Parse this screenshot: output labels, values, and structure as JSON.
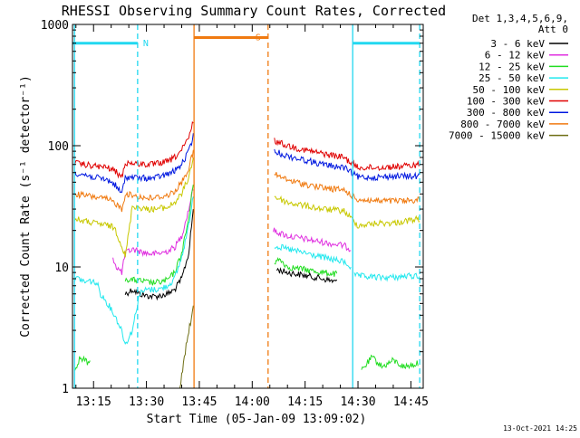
{
  "chart_data": {
    "type": "line",
    "title": "RHESSI Observing Summary Count Rates, Corrected",
    "ylabel": "Corrected Count Rate (s⁻¹ detector⁻¹)",
    "xlabel": "Start Time (05-Jan-09 13:09:02)",
    "x_tick_labels": [
      "13:15",
      "13:30",
      "13:45",
      "14:00",
      "14:15",
      "14:30",
      "14:45"
    ],
    "x_tick_minutes": [
      {
        "label": "13:15",
        "minutes": 795
      },
      {
        "label": "13:30",
        "minutes": 810
      },
      {
        "label": "13:45",
        "minutes": 825
      },
      {
        "label": "14:00",
        "minutes": 840
      },
      {
        "label": "14:15",
        "minutes": 855
      },
      {
        "label": "14:30",
        "minutes": 870
      },
      {
        "label": "14:45",
        "minutes": 885
      }
    ],
    "xlim_minutes": [
      789.03,
      888.5
    ],
    "y_scale": "log",
    "ylim": [
      1,
      1000
    ],
    "y_tick_labels": [
      {
        "value": 1,
        "label": "1"
      },
      {
        "value": 10,
        "label": "10"
      },
      {
        "value": 100,
        "label": "100"
      },
      {
        "value": 1000,
        "label": "1000"
      }
    ],
    "legend_header": [
      "Det 1,3,4,5,6,9,",
      "Att 0"
    ],
    "legend_position": "top-right",
    "timestamp": "13-Oct-2021 14:25",
    "flag_bars": [
      {
        "label": "N",
        "color": "#22d8f0",
        "segments": [
          [
            789.03,
            807.5
          ],
          [
            868.5,
            887.5
          ]
        ],
        "level": 700
      },
      {
        "label": "S",
        "color": "#f07a10",
        "segments": [
          [
            823.5,
            844.5
          ]
        ],
        "level": 780
      }
    ],
    "vlines": [
      {
        "minutes": 789.6,
        "color": "#22d8f0",
        "style": "solid"
      },
      {
        "minutes": 807.5,
        "color": "#22d8f0",
        "style": "dashed"
      },
      {
        "minutes": 823.5,
        "color": "#f07a10",
        "style": "solid"
      },
      {
        "minutes": 844.5,
        "color": "#f07a10",
        "style": "dashed"
      },
      {
        "minutes": 868.5,
        "color": "#22d8f0",
        "style": "solid"
      },
      {
        "minutes": 887.5,
        "color": "#22d8f0",
        "style": "dashed"
      }
    ],
    "series": [
      {
        "name": "3 - 6 keV",
        "color": "#000000",
        "segments": [
          [
            [
              804,
              6
            ],
            [
              806,
              6.5
            ],
            [
              808,
              6
            ],
            [
              810,
              5.8
            ],
            [
              812,
              5.7
            ],
            [
              814,
              5.8
            ],
            [
              816,
              6
            ],
            [
              818,
              6.5
            ],
            [
              820,
              8
            ],
            [
              822,
              13
            ],
            [
              823.3,
              30
            ]
          ],
          [
            [
              847,
              9.5
            ],
            [
              850,
              9
            ],
            [
              855,
              8.5
            ],
            [
              860,
              8
            ],
            [
              864,
              7.5
            ]
          ]
        ]
      },
      {
        "name": "6 - 12 keV",
        "color": "#e030e0",
        "segments": [
          [
            [
              800.5,
              12
            ],
            [
              801.5,
              10
            ],
            [
              803,
              9
            ],
            [
              804,
              13
            ],
            [
              806,
              14
            ],
            [
              808,
              13.5
            ],
            [
              810,
              13
            ],
            [
              812,
              12.8
            ],
            [
              814,
              13
            ],
            [
              816,
              13.5
            ],
            [
              818,
              14.5
            ],
            [
              820,
              18
            ],
            [
              822,
              30
            ],
            [
              823.3,
              45
            ]
          ],
          [
            [
              846,
              20
            ],
            [
              850,
              18
            ],
            [
              855,
              17
            ],
            [
              860,
              16
            ],
            [
              866,
              15
            ],
            [
              868,
              14
            ]
          ]
        ]
      },
      {
        "name": "12 - 25 keV",
        "color": "#22dd22",
        "segments": [
          [
            [
              789.5,
              1.5
            ],
            [
              790.5,
              1.5
            ],
            [
              791,
              1.8
            ],
            [
              794,
              1.6
            ]
          ],
          [
            [
              804,
              8
            ],
            [
              806,
              7.8
            ],
            [
              808,
              7.7
            ],
            [
              810,
              7.5
            ],
            [
              812,
              7.4
            ],
            [
              814,
              7.5
            ],
            [
              816,
              7.8
            ],
            [
              818,
              9
            ],
            [
              820,
              13
            ],
            [
              822,
              25
            ],
            [
              823.3,
              50
            ]
          ],
          [
            [
              846.3,
              11
            ],
            [
              848,
              11.5
            ],
            [
              850,
              10
            ],
            [
              855,
              9.5
            ],
            [
              860,
              9
            ],
            [
              864,
              8.7
            ]
          ],
          [
            [
              871,
              1.4
            ],
            [
              874,
              1.8
            ],
            [
              877,
              1.5
            ],
            [
              880,
              1.7
            ],
            [
              883,
              1.5
            ],
            [
              887,
              1.6
            ]
          ]
        ]
      },
      {
        "name": "25 - 50 keV",
        "color": "#22e8ee",
        "segments": [
          [
            [
              789.5,
              8
            ],
            [
              791,
              8
            ],
            [
              792.5,
              7.5
            ],
            [
              794,
              7.7
            ],
            [
              796,
              7.3
            ],
            [
              797,
              6
            ],
            [
              799,
              5
            ],
            [
              801,
              4
            ],
            [
              803,
              3
            ],
            [
              804,
              2.3
            ],
            [
              806,
              3
            ],
            [
              808,
              6
            ],
            [
              810,
              6.5
            ],
            [
              812,
              6.5
            ],
            [
              814,
              6.6
            ],
            [
              816,
              7
            ],
            [
              818,
              8
            ],
            [
              820,
              12
            ],
            [
              822,
              22
            ],
            [
              823.3,
              40
            ]
          ],
          [
            [
              846.3,
              15
            ],
            [
              850,
              14
            ],
            [
              855,
              13
            ],
            [
              860,
              12
            ],
            [
              866,
              11
            ],
            [
              868,
              10
            ]
          ],
          [
            [
              869,
              8.5
            ],
            [
              872,
              8.3
            ],
            [
              876,
              8.2
            ],
            [
              880,
              8.2
            ],
            [
              884,
              8.4
            ],
            [
              887.5,
              8.5
            ]
          ]
        ]
      },
      {
        "name": "50 - 100 keV",
        "color": "#c8c800",
        "segments": [
          [
            [
              789.5,
              25
            ],
            [
              792,
              24
            ],
            [
              795,
              23
            ],
            [
              799,
              22
            ],
            [
              801,
              21
            ],
            [
              803,
              15
            ],
            [
              804,
              12
            ],
            [
              806,
              32
            ],
            [
              808,
              31
            ],
            [
              810,
              30
            ],
            [
              812,
              30
            ],
            [
              814,
              30.5
            ],
            [
              816,
              31
            ],
            [
              818,
              34
            ],
            [
              820,
              40
            ],
            [
              822,
              55
            ],
            [
              823.3,
              80
            ]
          ],
          [
            [
              846.3,
              38
            ],
            [
              850,
              34
            ],
            [
              855,
              32
            ],
            [
              860,
              30
            ],
            [
              866,
              29
            ],
            [
              870,
              22
            ],
            [
              876,
              23
            ],
            [
              880,
              23
            ],
            [
              884,
              24
            ],
            [
              887.5,
              25
            ]
          ]
        ]
      },
      {
        "name": "100 - 300 keV",
        "color": "#e00000",
        "segments": [
          [
            [
              789.5,
              72
            ],
            [
              792,
              70
            ],
            [
              795,
              68
            ],
            [
              799,
              66
            ],
            [
              801,
              62
            ],
            [
              803,
              55
            ],
            [
              804,
              72
            ],
            [
              806,
              72
            ],
            [
              808,
              71
            ],
            [
              810,
              70
            ],
            [
              812,
              70
            ],
            [
              814,
              72
            ],
            [
              816,
              74
            ],
            [
              818,
              80
            ],
            [
              820,
              92
            ],
            [
              822,
              115
            ],
            [
              823.3,
              160
            ]
          ],
          [
            [
              846.3,
              110
            ],
            [
              850,
              100
            ],
            [
              855,
              92
            ],
            [
              860,
              86
            ],
            [
              866,
              80
            ],
            [
              870,
              66
            ],
            [
              876,
              66
            ],
            [
              880,
              67
            ],
            [
              884,
              68
            ],
            [
              887.5,
              70
            ]
          ]
        ]
      },
      {
        "name": "300 - 800 keV",
        "color": "#0018e0",
        "segments": [
          [
            [
              789.5,
              60
            ],
            [
              792,
              58
            ],
            [
              795,
              55
            ],
            [
              799,
              52
            ],
            [
              801,
              48
            ],
            [
              803,
              40
            ],
            [
              804,
              55
            ],
            [
              806,
              55
            ],
            [
              808,
              54
            ],
            [
              810,
              54
            ],
            [
              812,
              54
            ],
            [
              814,
              56
            ],
            [
              816,
              58
            ],
            [
              818,
              62
            ],
            [
              820,
              70
            ],
            [
              822,
              90
            ],
            [
              823.3,
              120
            ]
          ],
          [
            [
              846.3,
              90
            ],
            [
              850,
              82
            ],
            [
              855,
              76
            ],
            [
              860,
              70
            ],
            [
              866,
              66
            ],
            [
              870,
              55
            ],
            [
              876,
              55
            ],
            [
              880,
              56
            ],
            [
              884,
              56
            ],
            [
              887.5,
              56
            ]
          ]
        ]
      },
      {
        "name": "800 - 7000 keV",
        "color": "#f07a10",
        "segments": [
          [
            [
              789.5,
              40
            ],
            [
              792,
              39
            ],
            [
              795,
              38
            ],
            [
              799,
              36
            ],
            [
              801,
              34
            ],
            [
              803,
              30
            ],
            [
              804,
              40
            ],
            [
              806,
              39
            ],
            [
              808,
              38
            ],
            [
              810,
              37
            ],
            [
              812,
              37
            ],
            [
              814,
              38
            ],
            [
              816,
              39
            ],
            [
              818,
              42
            ],
            [
              820,
              50
            ],
            [
              822,
              65
            ],
            [
              823.3,
              90
            ]
          ],
          [
            [
              846.3,
              58
            ],
            [
              850,
              52
            ],
            [
              855,
              48
            ],
            [
              860,
              45
            ],
            [
              866,
              43
            ],
            [
              870,
              36
            ],
            [
              876,
              35
            ],
            [
              880,
              35
            ],
            [
              884,
              35
            ],
            [
              887.5,
              36
            ]
          ]
        ]
      },
      {
        "name": "7000 - 15000 keV",
        "color": "#6e6e14",
        "segments": [
          [
            [
              819.5,
              1
            ],
            [
              820.5,
              1.6
            ],
            [
              821.5,
              2.5
            ],
            [
              822.5,
              3.5
            ],
            [
              823.3,
              5
            ]
          ]
        ]
      }
    ]
  }
}
